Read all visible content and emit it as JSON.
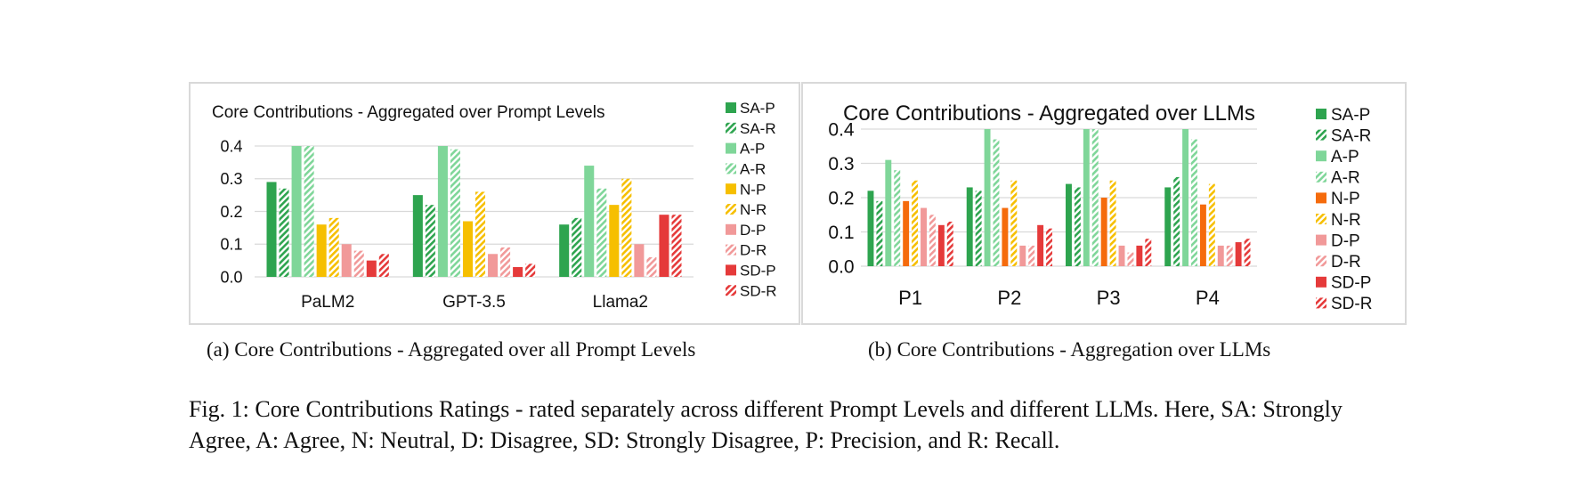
{
  "colors": {
    "SA": "#2ea44f",
    "A": "#7fd699",
    "N_a": "#f6bf00",
    "N_b_P": "#f56b0c",
    "N_b_R": "#f6bf00",
    "D": "#f19999",
    "SD": "#e53a3a",
    "grid": "#d9d9d9"
  },
  "chart_data": [
    {
      "type": "bar",
      "title": "Core Contributions - Aggregated over Prompt Levels",
      "caption": "(a) Core Contributions - Aggregated over all Prompt Levels",
      "categories": [
        "PaLM2",
        "GPT-3.5",
        "Llama2"
      ],
      "ylim": [
        0,
        0.4
      ],
      "yticks": [
        "0.0",
        "0.1",
        "0.2",
        "0.3",
        "0.4"
      ],
      "grid": true,
      "legend_position": "right",
      "series": [
        {
          "name": "SA-P",
          "pattern": "solid",
          "values": [
            0.29,
            0.25,
            0.16
          ]
        },
        {
          "name": "SA-R",
          "pattern": "hatch",
          "values": [
            0.27,
            0.22,
            0.18
          ]
        },
        {
          "name": "A-P",
          "pattern": "solid",
          "values": [
            0.4,
            0.4,
            0.34
          ]
        },
        {
          "name": "A-R",
          "pattern": "hatch",
          "values": [
            0.4,
            0.39,
            0.27
          ]
        },
        {
          "name": "N-P",
          "pattern": "solid",
          "values": [
            0.16,
            0.17,
            0.22
          ]
        },
        {
          "name": "N-R",
          "pattern": "hatch",
          "values": [
            0.18,
            0.26,
            0.3
          ]
        },
        {
          "name": "D-P",
          "pattern": "solid",
          "values": [
            0.1,
            0.07,
            0.1
          ]
        },
        {
          "name": "D-R",
          "pattern": "hatch",
          "values": [
            0.08,
            0.09,
            0.06
          ]
        },
        {
          "name": "SD-P",
          "pattern": "solid",
          "values": [
            0.05,
            0.03,
            0.19
          ]
        },
        {
          "name": "SD-R",
          "pattern": "hatch",
          "values": [
            0.07,
            0.04,
            0.19
          ]
        }
      ]
    },
    {
      "type": "bar",
      "title": "Core Contributions - Aggregated over LLMs",
      "caption": "(b) Core Contributions - Aggregation over LLMs",
      "categories": [
        "P1",
        "P2",
        "P3",
        "P4"
      ],
      "ylim": [
        0,
        0.4
      ],
      "yticks": [
        "0.0",
        "0.1",
        "0.2",
        "0.3",
        "0.4"
      ],
      "grid": true,
      "legend_position": "right",
      "series": [
        {
          "name": "SA-P",
          "pattern": "solid",
          "values": [
            0.22,
            0.23,
            0.24,
            0.23
          ]
        },
        {
          "name": "SA-R",
          "pattern": "hatch",
          "values": [
            0.19,
            0.22,
            0.23,
            0.26
          ]
        },
        {
          "name": "A-P",
          "pattern": "solid",
          "values": [
            0.31,
            0.4,
            0.4,
            0.4
          ]
        },
        {
          "name": "A-R",
          "pattern": "hatch",
          "values": [
            0.28,
            0.37,
            0.4,
            0.37
          ]
        },
        {
          "name": "N-P",
          "pattern": "solid",
          "values": [
            0.19,
            0.17,
            0.2,
            0.18
          ]
        },
        {
          "name": "N-R",
          "pattern": "hatch",
          "values": [
            0.25,
            0.25,
            0.25,
            0.24
          ]
        },
        {
          "name": "D-P",
          "pattern": "solid",
          "values": [
            0.17,
            0.06,
            0.06,
            0.06
          ]
        },
        {
          "name": "D-R",
          "pattern": "hatch",
          "values": [
            0.15,
            0.06,
            0.04,
            0.06
          ]
        },
        {
          "name": "SD-P",
          "pattern": "solid",
          "values": [
            0.12,
            0.12,
            0.06,
            0.07
          ]
        },
        {
          "name": "SD-R",
          "pattern": "hatch",
          "values": [
            0.13,
            0.11,
            0.08,
            0.08
          ]
        }
      ]
    }
  ],
  "figure_caption": "Fig. 1: Core Contributions Ratings - rated separately across different Prompt Levels and different LLMs. Here, SA: Strongly Agree, A: Agree, N: Neutral, D: Disagree, SD: Strongly Disagree, P: Precision, and R: Recall."
}
